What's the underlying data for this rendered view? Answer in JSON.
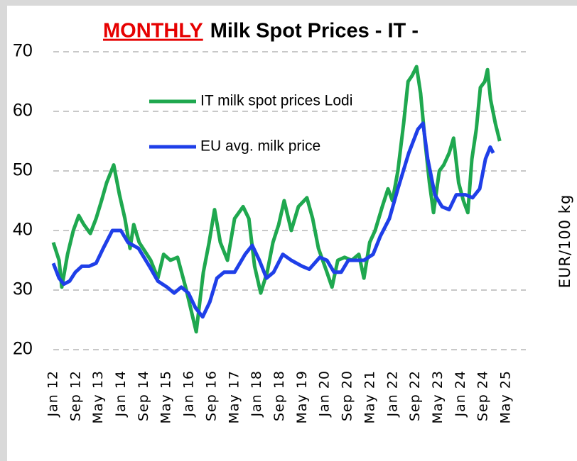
{
  "chart_data": {
    "type": "line",
    "title_highlight": "MONTHLY",
    "title": "Milk Spot Prices - IT -",
    "y_label": "EUR/100 kg",
    "legend": "upper left",
    "grid": true,
    "xlim": [
      2012,
      2025.333
    ],
    "xticks": [
      {
        "value": 2012,
        "label": "Jan 12"
      },
      {
        "value": 2012.667,
        "label": "Sep 12"
      },
      {
        "value": 2013.333,
        "label": "May 13"
      },
      {
        "value": 2014,
        "label": "Jan 14"
      },
      {
        "value": 2014.667,
        "label": "Sep 14"
      },
      {
        "value": 2015.333,
        "label": "May 15"
      },
      {
        "value": 2016,
        "label": "Jan 16"
      },
      {
        "value": 2016.667,
        "label": "Sep 16"
      },
      {
        "value": 2017.333,
        "label": "May 17"
      },
      {
        "value": 2018,
        "label": "Jan 18"
      },
      {
        "value": 2018.667,
        "label": "Sep 18"
      },
      {
        "value": 2019.333,
        "label": "May 19"
      },
      {
        "value": 2020,
        "label": "Jan 20"
      },
      {
        "value": 2020.667,
        "label": "Sep 20"
      },
      {
        "value": 2021.333,
        "label": "May 21"
      },
      {
        "value": 2022,
        "label": "Jan 22"
      },
      {
        "value": 2022.667,
        "label": "Sep 22"
      },
      {
        "value": 2023.333,
        "label": "May 23"
      },
      {
        "value": 2024,
        "label": "Jan 24"
      },
      {
        "value": 2024.667,
        "label": "Sep 24"
      },
      {
        "value": 2025.333,
        "label": "May 25"
      }
    ],
    "ylim": [
      20,
      70
    ],
    "yticks": [
      20,
      30,
      40,
      50,
      60,
      70
    ],
    "series": [
      {
        "name": "IT milk spot prices Lodi",
        "color": "#1fa84f",
        "x": [
          2012.0,
          2012.17,
          2012.25,
          2012.42,
          2012.59,
          2012.75,
          2012.9,
          2013.09,
          2013.26,
          2013.42,
          2013.57,
          2013.78,
          2013.95,
          2014.11,
          2014.26,
          2014.37,
          2014.53,
          2014.7,
          2014.87,
          2015.08,
          2015.25,
          2015.45,
          2015.66,
          2015.92,
          2016.21,
          2016.42,
          2016.59,
          2016.75,
          2016.92,
          2017.13,
          2017.34,
          2017.59,
          2017.76,
          2017.93,
          2018.11,
          2018.3,
          2018.47,
          2018.64,
          2018.8,
          2019.01,
          2019.22,
          2019.47,
          2019.64,
          2019.81,
          2020.06,
          2020.21,
          2020.38,
          2020.58,
          2020.79,
          2021.0,
          2021.15,
          2021.32,
          2021.48,
          2021.69,
          2021.86,
          2021.99,
          2022.15,
          2022.32,
          2022.45,
          2022.57,
          2022.7,
          2022.82,
          2022.95,
          2023.08,
          2023.2,
          2023.37,
          2023.5,
          2023.66,
          2023.79,
          2023.94,
          2024.08,
          2024.21,
          2024.33,
          2024.46,
          2024.58,
          2024.71,
          2024.79,
          2024.88,
          2025.02,
          2025.15
        ],
        "values": [
          38,
          35,
          30.5,
          36,
          40,
          42.5,
          41,
          39.5,
          42,
          45,
          48,
          51,
          46,
          42,
          37,
          41,
          38,
          36.5,
          35,
          32,
          36,
          35,
          35.5,
          30,
          23,
          33,
          38,
          43.5,
          38,
          35,
          42,
          44,
          42,
          34,
          29.5,
          33,
          38,
          41,
          45,
          40,
          44,
          45.5,
          42,
          37,
          33,
          30.5,
          35,
          35.5,
          35,
          36,
          32,
          38,
          40,
          44,
          47,
          45,
          50,
          58,
          65,
          66,
          67.5,
          63,
          55,
          48,
          43,
          50,
          51,
          53,
          55.5,
          48,
          45,
          43,
          52,
          57,
          64,
          65,
          67,
          62,
          58,
          55
        ]
      },
      {
        "name": "EU avg. milk price",
        "color": "#1f3fe8",
        "x": [
          2012.0,
          2012.17,
          2012.31,
          2012.48,
          2012.65,
          2012.84,
          2013.05,
          2013.26,
          2013.47,
          2013.74,
          2013.99,
          2014.2,
          2014.51,
          2014.83,
          2015.08,
          2015.35,
          2015.56,
          2015.77,
          2015.98,
          2016.19,
          2016.4,
          2016.61,
          2016.82,
          2017.03,
          2017.34,
          2017.65,
          2017.86,
          2018.07,
          2018.28,
          2018.49,
          2018.76,
          2019.01,
          2019.33,
          2019.54,
          2019.85,
          2020.06,
          2020.27,
          2020.48,
          2020.69,
          2020.9,
          2021.15,
          2021.42,
          2021.63,
          2021.9,
          2022.15,
          2022.47,
          2022.74,
          2022.89,
          2023.03,
          2023.24,
          2023.45,
          2023.66,
          2023.87,
          2024.14,
          2024.35,
          2024.56,
          2024.73,
          2024.87,
          2024.96
        ],
        "values": [
          34.5,
          32,
          31,
          31.5,
          33,
          34,
          34,
          34.5,
          37,
          40,
          40,
          38,
          37,
          34,
          31.5,
          30.5,
          29.5,
          30.5,
          29.5,
          27,
          25.5,
          28,
          32,
          33,
          33,
          36,
          37.5,
          35,
          32,
          33,
          36,
          35,
          34,
          33.5,
          35.5,
          35,
          33,
          33,
          35,
          35,
          35,
          36,
          39,
          42,
          47,
          53,
          57,
          58,
          52,
          46,
          44,
          43.5,
          46,
          46,
          45.5,
          47,
          52,
          54,
          53
        ]
      }
    ]
  }
}
